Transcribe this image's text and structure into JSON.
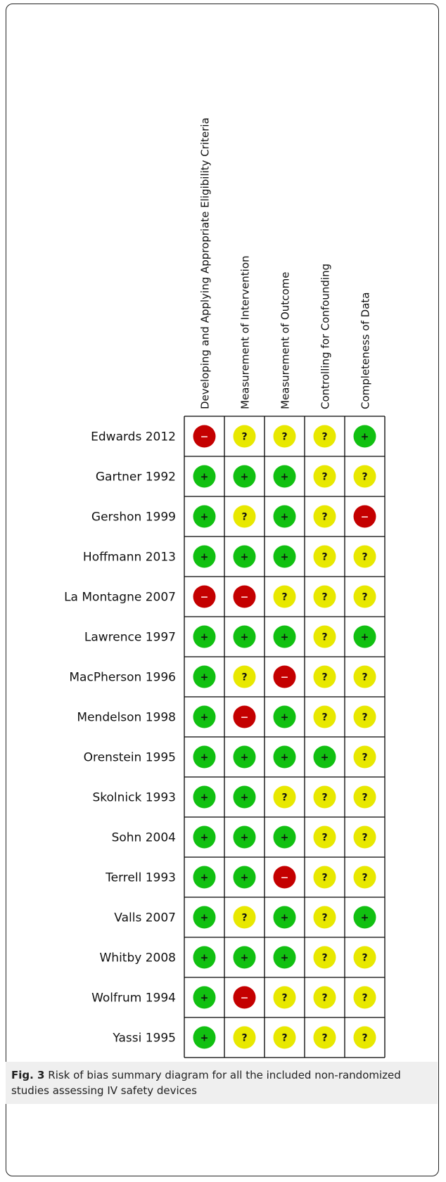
{
  "figure": {
    "columns": [
      "Developing and Applying Appropriate Eligibility Criteria",
      "Measurement of Intervention",
      "Measurement of Outcome",
      "Controlling for Confounding",
      "Completeness of Data"
    ],
    "colors": {
      "+": "#11c011",
      "?": "#e8e800",
      "−": "#c40000"
    },
    "rows": [
      {
        "study": "Edwards 2012",
        "ratings": [
          "−",
          "?",
          "?",
          "?",
          "+"
        ]
      },
      {
        "study": "Gartner 1992",
        "ratings": [
          "+",
          "+",
          "+",
          "?",
          "?"
        ]
      },
      {
        "study": "Gershon 1999",
        "ratings": [
          "+",
          "?",
          "+",
          "?",
          "−"
        ]
      },
      {
        "study": "Hoffmann 2013",
        "ratings": [
          "+",
          "+",
          "+",
          "?",
          "?"
        ]
      },
      {
        "study": "La Montagne 2007",
        "ratings": [
          "−",
          "−",
          "?",
          "?",
          "?"
        ]
      },
      {
        "study": "Lawrence 1997",
        "ratings": [
          "+",
          "+",
          "+",
          "?",
          "+"
        ]
      },
      {
        "study": "MacPherson 1996",
        "ratings": [
          "+",
          "?",
          "−",
          "?",
          "?"
        ]
      },
      {
        "study": "Mendelson 1998",
        "ratings": [
          "+",
          "−",
          "+",
          "?",
          "?"
        ]
      },
      {
        "study": "Orenstein 1995",
        "ratings": [
          "+",
          "+",
          "+",
          "+",
          "?"
        ]
      },
      {
        "study": "Skolnick 1993",
        "ratings": [
          "+",
          "+",
          "?",
          "?",
          "?"
        ]
      },
      {
        "study": "Sohn 2004",
        "ratings": [
          "+",
          "+",
          "+",
          "?",
          "?"
        ]
      },
      {
        "study": "Terrell 1993",
        "ratings": [
          "+",
          "+",
          "−",
          "?",
          "?"
        ]
      },
      {
        "study": "Valls 2007",
        "ratings": [
          "+",
          "?",
          "+",
          "?",
          "+"
        ]
      },
      {
        "study": "Whitby 2008",
        "ratings": [
          "+",
          "+",
          "+",
          "?",
          "?"
        ]
      },
      {
        "study": "Wolfrum 1994",
        "ratings": [
          "+",
          "−",
          "?",
          "?",
          "?"
        ]
      },
      {
        "study": "Yassi 1995",
        "ratings": [
          "+",
          "?",
          "?",
          "?",
          "?"
        ]
      }
    ],
    "caption": {
      "label": "Fig. 3",
      "text": "Risk of bias summary diagram for all the included non-randomized studies assessing IV safety devices"
    }
  }
}
